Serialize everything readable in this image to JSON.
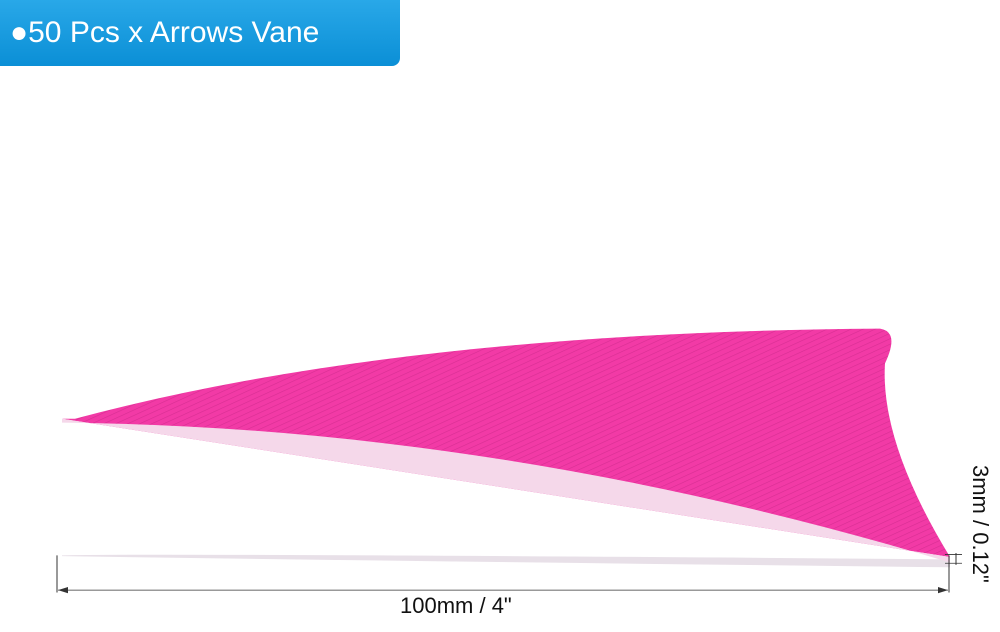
{
  "header": {
    "title": "●50 Pcs x Arrows Vane"
  },
  "dimensions": {
    "length": "100mm / 4\"",
    "thickness": "3mm / 0.12\""
  }
}
